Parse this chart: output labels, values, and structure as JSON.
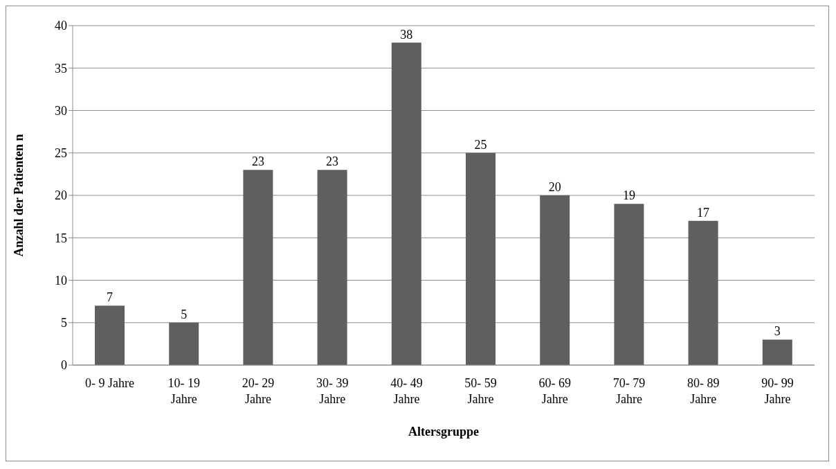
{
  "chart_data": {
    "type": "bar",
    "xlabel": "Altersgruppe",
    "ylabel": "Anzahl der Patienten n",
    "categories": [
      "0- 9 Jahre",
      "10- 19 Jahre",
      "20- 29 Jahre",
      "30- 39 Jahre",
      "40- 49 Jahre",
      "50- 59 Jahre",
      "60- 69 Jahre",
      "70- 79 Jahre",
      "80- 89 Jahre",
      "90- 99 Jahre"
    ],
    "values": [
      7,
      5,
      23,
      23,
      38,
      25,
      20,
      19,
      17,
      3
    ],
    "color": "#5f5f5f",
    "ylim": [
      0,
      40
    ],
    "yticks": [
      0,
      5,
      10,
      15,
      20,
      25,
      30,
      35,
      40
    ],
    "grid": "y",
    "data_labels": true
  }
}
